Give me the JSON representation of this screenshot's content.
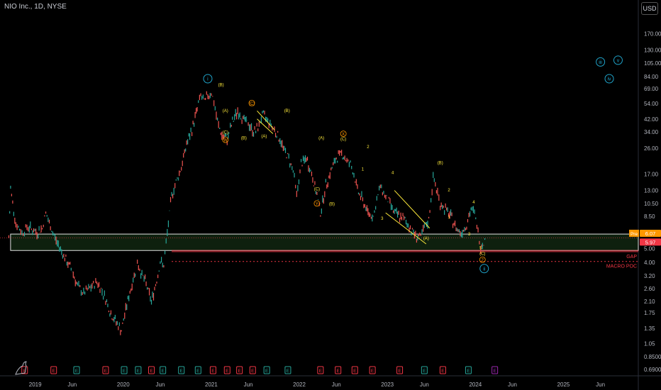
{
  "title": "NIO Inc., 1D, NYSE",
  "currency": "USD",
  "chart_data": {
    "type": "line",
    "yscale": "log",
    "ylim": [
      0.62,
      240
    ],
    "y_ticks": [
      "170.00",
      "130.00",
      "105.00",
      "84.00",
      "69.00",
      "54.00",
      "42.00",
      "34.00",
      "26.00",
      "17.00",
      "13.00",
      "10.50",
      "8.50",
      "6.50",
      "5.00",
      "4.00",
      "3.20",
      "2.60",
      "2.10",
      "1.75",
      "1.35",
      "1.05",
      "0.8500",
      "0.6900"
    ],
    "y_tick_values": [
      170,
      130,
      105,
      84,
      69,
      54,
      42,
      34,
      26,
      17,
      13,
      10.5,
      8.5,
      6.5,
      5,
      4,
      3.2,
      2.6,
      2.1,
      1.75,
      1.35,
      1.05,
      0.85,
      0.69
    ],
    "x_ticks": [
      "2019",
      "Jun",
      "2020",
      "Jun",
      "2021",
      "Jun",
      "2022",
      "Jun",
      "2023",
      "Jun",
      "2024",
      "Jun",
      "2025",
      "Jun"
    ],
    "x_tick_values": [
      2019.0,
      2019.42,
      2020.0,
      2020.42,
      2021.0,
      2021.42,
      2022.0,
      2022.42,
      2023.0,
      2023.42,
      2024.0,
      2024.42,
      2025.0,
      2025.42
    ],
    "xlim": [
      2018.6,
      2025.85
    ],
    "series": [
      {
        "x": [
          2018.7,
          2018.72,
          2018.78,
          2018.85,
          2018.92,
          2018.97,
          2019.02,
          2019.08,
          2019.12,
          2019.16,
          2019.2,
          2019.25,
          2019.3,
          2019.36,
          2019.42,
          2019.48,
          2019.55,
          2019.62,
          2019.7,
          2019.76,
          2019.8,
          2019.86,
          2019.92,
          2019.98,
          2020.04,
          2020.1,
          2020.16,
          2020.2,
          2020.26,
          2020.32,
          2020.38,
          2020.42,
          2020.46,
          2020.5,
          2020.55,
          2020.6,
          2020.66,
          2020.72,
          2020.78,
          2020.84,
          2020.88,
          2020.92,
          2020.96,
          2021.0,
          2021.03,
          2021.07,
          2021.12,
          2021.18,
          2021.24,
          2021.3,
          2021.36,
          2021.42,
          2021.48,
          2021.53,
          2021.58,
          2021.63,
          2021.68,
          2021.73,
          2021.78,
          2021.83,
          2021.88,
          2021.93,
          2021.97,
          2022.02,
          2022.08,
          2022.14,
          2022.2,
          2022.24,
          2022.3,
          2022.36,
          2022.42,
          2022.48,
          2022.54,
          2022.58,
          2022.62,
          2022.66,
          2022.72,
          2022.78,
          2022.84,
          2022.88,
          2022.92,
          2022.97,
          2023.03,
          2023.08,
          2023.14,
          2023.2,
          2023.26,
          2023.32,
          2023.38,
          2023.42,
          2023.47,
          2023.52,
          2023.57,
          2023.6,
          2023.66,
          2023.72,
          2023.78,
          2023.84,
          2023.9,
          2023.95,
          2023.99,
          2024.03,
          2024.06,
          2024.08,
          2024.12
        ],
        "y": [
          6.0,
          13.5,
          7.5,
          6.5,
          7.2,
          6.8,
          6.5,
          7.0,
          9.0,
          7.5,
          6.5,
          5.5,
          4.8,
          4.0,
          3.5,
          2.7,
          2.4,
          2.6,
          2.9,
          2.5,
          2.2,
          1.7,
          1.5,
          1.3,
          2.0,
          2.8,
          4.0,
          3.4,
          2.8,
          2.1,
          3.0,
          4.0,
          3.8,
          6.5,
          12.0,
          15.0,
          19.0,
          28.0,
          35.0,
          50.0,
          62.0,
          55.0,
          62.0,
          65.0,
          55.0,
          40.0,
          32.0,
          30.0,
          40.0,
          48.0,
          42.0,
          39.0,
          34.0,
          36.0,
          45.0,
          42.0,
          38.0,
          34.0,
          30.0,
          25.0,
          22.0,
          18.0,
          12.0,
          20.0,
          22.0,
          17.0,
          12.0,
          9.0,
          14.0,
          18.0,
          22.0,
          24.0,
          21.0,
          20.0,
          17.0,
          13.0,
          11.0,
          9.0,
          8.5,
          11.0,
          14.0,
          12.0,
          10.5,
          9.0,
          8.5,
          8.0,
          7.0,
          6.2,
          6.0,
          7.0,
          8.0,
          16.0,
          12.5,
          10.5,
          9.5,
          8.5,
          7.0,
          6.5,
          7.5,
          9.5,
          9.0,
          6.5,
          5.2,
          5.5,
          5.8
        ]
      }
    ],
    "levels": [
      {
        "name": "Pre",
        "value": "6.07",
        "y": 6.07,
        "color": "#ff9800"
      },
      {
        "name": "",
        "value": "5.97",
        "y": 5.97,
        "color": "#f23645"
      }
    ],
    "zone_top": 6.35,
    "zone_bottom": 4.85,
    "gap_label": "GAP",
    "gap_level": 4.8,
    "poc_label": "MACRO POC",
    "poc_level": 4.05,
    "wave_labels": [
      {
        "t": "(B)",
        "x": 2021.11,
        "y": 72,
        "c": "#ffeb3b"
      },
      {
        "t": "(A)",
        "x": 2021.16,
        "y": 47,
        "c": "#ffeb3b"
      },
      {
        "t": "(C)",
        "x": 2021.16,
        "y": 33,
        "c": "#ffeb3b"
      },
      {
        "t": "W",
        "x": 2021.16,
        "y": 29,
        "c": "#ff9800",
        "circle": true
      },
      {
        "t": "(B)",
        "x": 2021.37,
        "y": 30,
        "c": "#ffeb3b"
      },
      {
        "t": "(C)",
        "x": 2021.46,
        "y": 53,
        "c": "#ff9800",
        "circle": true
      },
      {
        "t": "(A)",
        "x": 2021.6,
        "y": 31,
        "c": "#ffeb3b"
      },
      {
        "t": "(B)",
        "x": 2021.86,
        "y": 47,
        "c": "#ffeb3b"
      },
      {
        "t": "(A)",
        "x": 2022.25,
        "y": 30,
        "c": "#ffeb3b"
      },
      {
        "t": "X",
        "x": 2022.5,
        "y": 32,
        "c": "#ff9800",
        "circle": true
      },
      {
        "t": "(C)",
        "x": 2022.5,
        "y": 29.5,
        "c": "#ffeb3b"
      },
      {
        "t": "(C)",
        "x": 2022.2,
        "y": 13,
        "c": "#ffeb3b"
      },
      {
        "t": "Y",
        "x": 2022.2,
        "y": 10.2,
        "c": "#ff9800",
        "circle": true
      },
      {
        "t": "(B)",
        "x": 2022.37,
        "y": 10.2,
        "c": "#ffeb3b"
      },
      {
        "t": "2",
        "x": 2022.78,
        "y": 26,
        "c": "#ffeb3b"
      },
      {
        "t": "1",
        "x": 2022.72,
        "y": 18,
        "c": "#ffeb3b"
      },
      {
        "t": "4",
        "x": 2023.06,
        "y": 17,
        "c": "#ffeb3b"
      },
      {
        "t": "3",
        "x": 2022.94,
        "y": 8,
        "c": "#ffeb3b"
      },
      {
        "t": "(B)",
        "x": 2023.6,
        "y": 20,
        "c": "#ffeb3b"
      },
      {
        "t": "2",
        "x": 2023.7,
        "y": 12.8,
        "c": "#ffeb3b"
      },
      {
        "t": "1",
        "x": 2023.7,
        "y": 8.2,
        "c": "#ffeb3b"
      },
      {
        "t": "4",
        "x": 2023.98,
        "y": 10.5,
        "c": "#ffeb3b"
      },
      {
        "t": "3",
        "x": 2023.93,
        "y": 6.2,
        "c": "#ffeb3b"
      },
      {
        "t": "(A)",
        "x": 2023.44,
        "y": 5.8,
        "c": "#ffeb3b"
      },
      {
        "t": "5",
        "x": 2024.06,
        "y": 4.95,
        "c": "#ffeb3b"
      },
      {
        "t": "(C)",
        "x": 2024.08,
        "y": 4.5,
        "c": "#ffeb3b"
      },
      {
        "t": "2",
        "x": 2024.08,
        "y": 4.05,
        "c": "#ff9800",
        "circle": true
      }
    ],
    "cycle_labels": [
      {
        "t": "i",
        "x": 2020.96,
        "y": 79,
        "c": "#1fa3c9"
      },
      {
        "t": "ii",
        "x": 2024.1,
        "y": 3.5,
        "c": "#1fa3c9"
      },
      {
        "t": "iii",
        "x": 2025.42,
        "y": 104,
        "c": "#1fa3c9"
      },
      {
        "t": "iv",
        "x": 2025.52,
        "y": 79,
        "c": "#1fa3c9"
      },
      {
        "t": "v",
        "x": 2025.62,
        "y": 107,
        "c": "#1fa3c9"
      }
    ],
    "events": [
      {
        "t": "E",
        "x": 2018.88,
        "c": "#f23645"
      },
      {
        "t": "E",
        "x": 2019.21,
        "c": "#f23645"
      },
      {
        "t": "E",
        "x": 2019.47,
        "c": "#26a69a"
      },
      {
        "t": "E",
        "x": 2019.8,
        "c": "#f23645"
      },
      {
        "t": "E",
        "x": 2020.01,
        "c": "#26a69a"
      },
      {
        "t": "E",
        "x": 2020.17,
        "c": "#26a69a"
      },
      {
        "t": "E",
        "x": 2020.32,
        "c": "#f23645"
      },
      {
        "t": "E",
        "x": 2020.45,
        "c": "#26a69a"
      },
      {
        "t": "E",
        "x": 2020.66,
        "c": "#26a69a"
      },
      {
        "t": "E",
        "x": 2020.85,
        "c": "#26a69a"
      },
      {
        "t": "E",
        "x": 2021.02,
        "c": "#f23645"
      },
      {
        "t": "E",
        "x": 2021.18,
        "c": "#f23645"
      },
      {
        "t": "E",
        "x": 2021.32,
        "c": "#f23645"
      },
      {
        "t": "E",
        "x": 2021.47,
        "c": "#f23645"
      },
      {
        "t": "E",
        "x": 2021.63,
        "c": "#26a69a"
      },
      {
        "t": "E",
        "x": 2021.87,
        "c": "#26a69a"
      },
      {
        "t": "E",
        "x": 2022.24,
        "c": "#f23645"
      },
      {
        "t": "E",
        "x": 2022.44,
        "c": "#f23645"
      },
      {
        "t": "E",
        "x": 2022.63,
        "c": "#f23645"
      },
      {
        "t": "E",
        "x": 2022.83,
        "c": "#f23645"
      },
      {
        "t": "E",
        "x": 2023.14,
        "c": "#f23645"
      },
      {
        "t": "E",
        "x": 2023.42,
        "c": "#26a69a"
      },
      {
        "t": "E",
        "x": 2023.63,
        "c": "#f23645"
      },
      {
        "t": "E",
        "x": 2023.92,
        "c": "#26a69a"
      },
      {
        "t": "E",
        "x": 2024.22,
        "c": "#9c27b0"
      }
    ]
  }
}
